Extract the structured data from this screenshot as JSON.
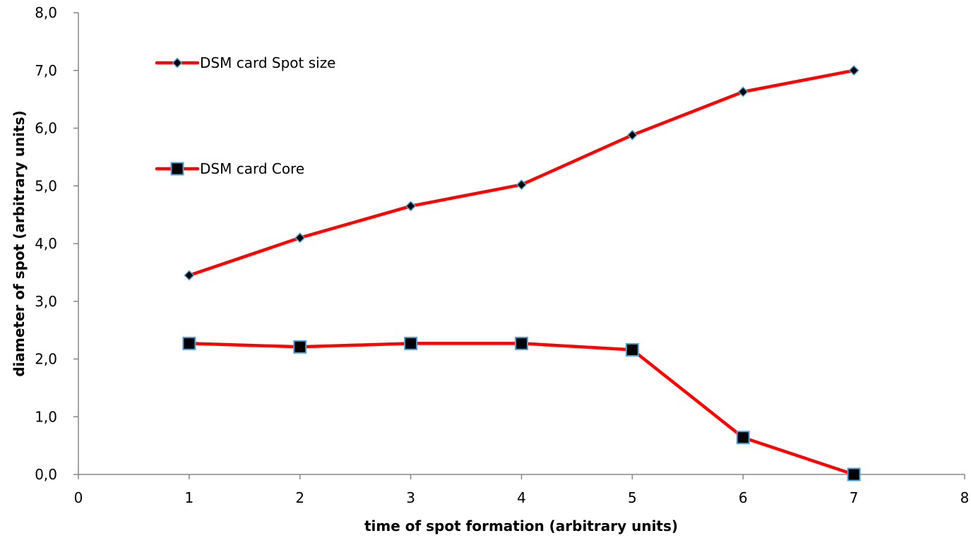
{
  "chart_data": {
    "type": "line",
    "title": "",
    "xlabel": "time of spot formation (arbitrary units)",
    "ylabel": "diameter of spot (arbitrary units)",
    "xlim": [
      0,
      8
    ],
    "ylim": [
      0,
      8
    ],
    "x_ticks": [
      0,
      1,
      2,
      3,
      4,
      5,
      6,
      7,
      8
    ],
    "x_tick_labels": [
      "0",
      "1",
      "2",
      "3",
      "4",
      "5",
      "6",
      "7",
      "8"
    ],
    "y_ticks": [
      0,
      1,
      2,
      3,
      4,
      5,
      6,
      7,
      8
    ],
    "y_tick_labels": [
      "0,0",
      "1,0",
      "2,0",
      "3,0",
      "4,0",
      "5,0",
      "6,0",
      "7,0",
      "8,0"
    ],
    "grid": false,
    "legend_position": "top-left",
    "line_color": "#ff0000",
    "marker_fill": "#000000",
    "marker_edge": "#4fa3d9",
    "series": [
      {
        "name": "DSM card Spot size",
        "marker": "diamond",
        "x": [
          1,
          2,
          3,
          4,
          5,
          6,
          7
        ],
        "values": [
          3.45,
          4.1,
          4.65,
          5.02,
          5.88,
          6.63,
          7.0
        ]
      },
      {
        "name": "DSM card Core",
        "marker": "square",
        "x": [
          1,
          2,
          3,
          4,
          5,
          6,
          7
        ],
        "values": [
          2.27,
          2.21,
          2.27,
          2.27,
          2.16,
          0.64,
          0.0
        ]
      }
    ]
  }
}
